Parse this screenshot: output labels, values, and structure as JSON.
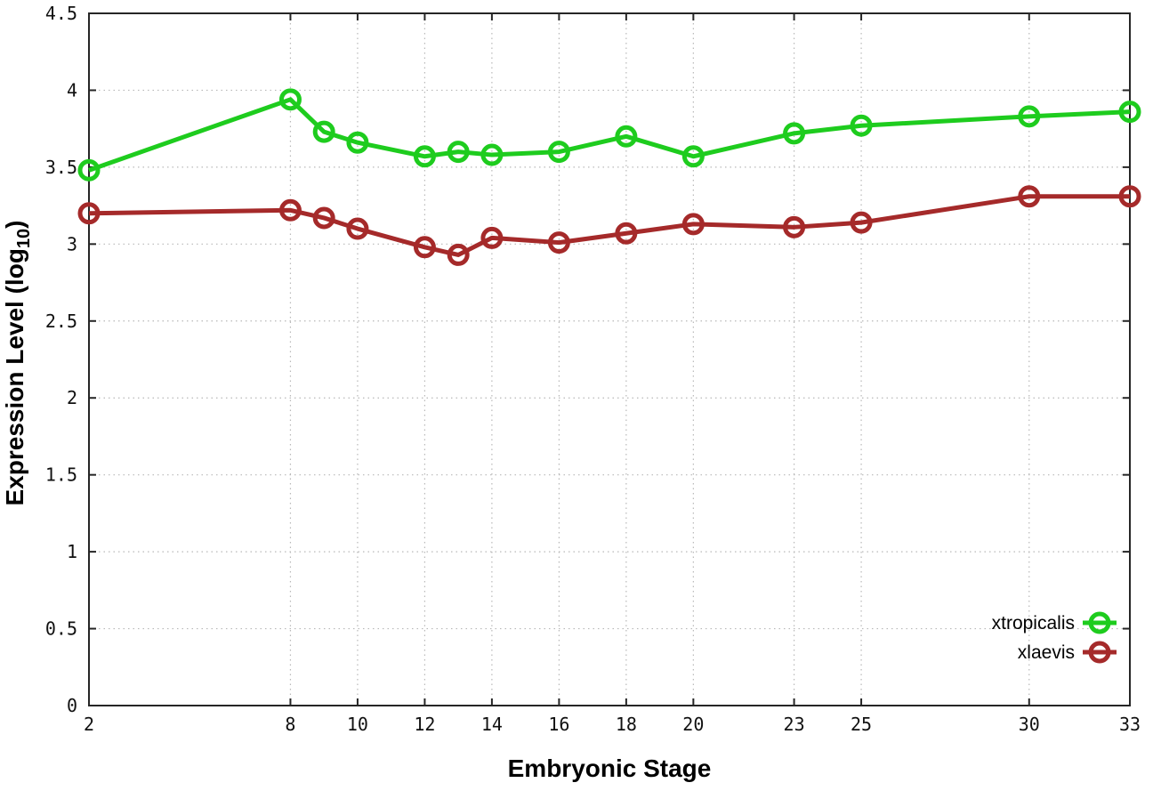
{
  "chart_data": {
    "type": "line",
    "title": "",
    "xlabel": "Embryonic Stage",
    "ylabel": "Expression Level (log10)",
    "ylabel_parts": {
      "prefix": "Expression Level (log",
      "subscript": "10",
      "suffix": ")"
    },
    "x": [
      2,
      8,
      9,
      10,
      12,
      13,
      14,
      16,
      18,
      20,
      23,
      25,
      30,
      33
    ],
    "series": [
      {
        "name": "xtropicalis",
        "color": "#1ecc1e",
        "values": [
          3.48,
          3.94,
          3.73,
          3.66,
          3.57,
          3.6,
          3.58,
          3.6,
          3.7,
          3.57,
          3.72,
          3.77,
          3.83,
          3.86
        ]
      },
      {
        "name": "xlaevis",
        "color": "#a52a2a",
        "values": [
          3.2,
          3.22,
          3.17,
          3.1,
          2.98,
          2.93,
          3.04,
          3.01,
          3.07,
          3.13,
          3.11,
          3.14,
          3.31,
          3.31
        ]
      }
    ],
    "xticks": [
      2,
      8,
      10,
      12,
      14,
      16,
      18,
      20,
      23,
      25,
      30,
      33
    ],
    "yticks": [
      0,
      0.5,
      1,
      1.5,
      2,
      2.5,
      3,
      3.5,
      4,
      4.5
    ],
    "xlim": [
      2,
      33
    ],
    "ylim": [
      0,
      4.5
    ],
    "grid": true,
    "legend_position": "bottom-right",
    "marker": "open-circle"
  },
  "style_colors": {
    "background": "#ffffff",
    "border": "#262626",
    "grid": "#b8b8b8",
    "text": "#000000"
  }
}
